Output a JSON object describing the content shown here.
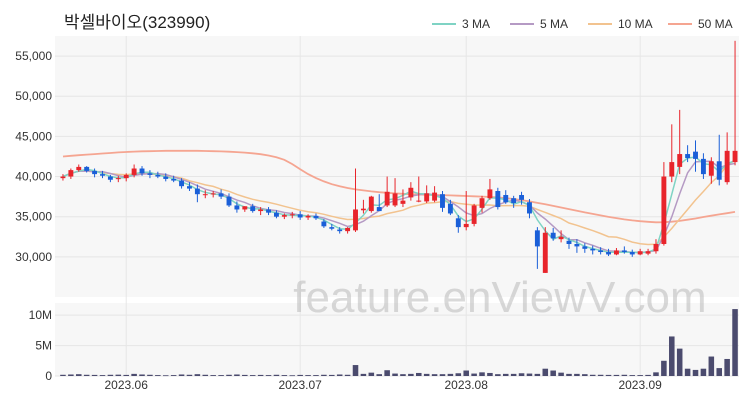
{
  "title": "박셀바이오(323990)",
  "watermark": "feature.enViewV.com",
  "colors": {
    "up": "#e8242b",
    "down": "#1a5fd8",
    "ma3": "#7fd3c4",
    "ma5": "#b59ac4",
    "ma10": "#f2c38f",
    "ma50": "#f5a591",
    "volume": "#4b4b6e",
    "grid": "#e6e6e6",
    "panel": "#f7f7f7"
  },
  "legend": [
    {
      "label": "3 MA",
      "key": "ma3"
    },
    {
      "label": "5 MA",
      "key": "ma5"
    },
    {
      "label": "10 MA",
      "key": "ma10"
    },
    {
      "label": "50 MA",
      "key": "ma50"
    }
  ],
  "chart_data": {
    "type": "candlestick",
    "price_ylim": [
      25000,
      57500
    ],
    "price_ticks": [
      30000,
      35000,
      40000,
      45000,
      50000,
      55000
    ],
    "price_tick_labels": [
      "30,000",
      "35,000",
      "40,000",
      "45,000",
      "50,000",
      "55,000"
    ],
    "volume_ylim": [
      0,
      12000000
    ],
    "volume_ticks": [
      0,
      5000000,
      10000000
    ],
    "volume_tick_labels": [
      "0",
      "5M",
      "10M"
    ],
    "x_tick_labels": [
      {
        "label": "2023.06",
        "index": 8
      },
      {
        "label": "2023.07",
        "index": 30
      },
      {
        "label": "2023.08",
        "index": 51
      },
      {
        "label": "2023.09",
        "index": 73
      }
    ],
    "candles": [
      [
        39800,
        40300,
        39500,
        40000
      ],
      [
        40000,
        41000,
        39700,
        40800
      ],
      [
        40800,
        41500,
        40600,
        41200
      ],
      [
        41200,
        41300,
        40500,
        40700
      ],
      [
        40700,
        41000,
        39900,
        40300
      ],
      [
        40300,
        40700,
        39800,
        40100
      ],
      [
        40000,
        40200,
        39300,
        39600
      ],
      [
        39700,
        40100,
        39300,
        39800
      ],
      [
        39800,
        40400,
        39400,
        40200
      ],
      [
        40200,
        41500,
        39900,
        41000
      ],
      [
        41000,
        41300,
        40100,
        40400
      ],
      [
        40400,
        40800,
        39800,
        40200
      ],
      [
        40200,
        40600,
        39800,
        40000
      ],
      [
        40000,
        40400,
        39400,
        39700
      ],
      [
        39700,
        40100,
        39300,
        39500
      ],
      [
        39500,
        39800,
        38500,
        38800
      ],
      [
        38800,
        39300,
        38200,
        38500
      ],
      [
        38500,
        39000,
        36800,
        37800
      ],
      [
        37800,
        38300,
        37300,
        37800
      ],
      [
        37800,
        38200,
        37400,
        37900
      ],
      [
        37900,
        38400,
        37200,
        37500
      ],
      [
        37500,
        37900,
        36200,
        36400
      ],
      [
        36400,
        36900,
        35500,
        35900
      ],
      [
        35900,
        36300,
        35600,
        36300
      ],
      [
        36300,
        36600,
        35500,
        35700
      ],
      [
        35700,
        36200,
        35200,
        35900
      ],
      [
        35900,
        36200,
        35200,
        35500
      ],
      [
        35500,
        35800,
        34800,
        35000
      ],
      [
        35000,
        35400,
        34700,
        35200
      ],
      [
        35200,
        35600,
        34800,
        35300
      ],
      [
        35300,
        35700,
        34600,
        34900
      ],
      [
        34900,
        35300,
        34600,
        35100
      ],
      [
        35100,
        35400,
        34600,
        34800
      ],
      [
        34400,
        34700,
        33600,
        33800
      ],
      [
        33700,
        34100,
        33300,
        33500
      ],
      [
        33400,
        33700,
        32900,
        33200
      ],
      [
        33200,
        33700,
        32900,
        33600
      ],
      [
        33300,
        41000,
        33100,
        35900
      ],
      [
        35800,
        37100,
        35400,
        36000
      ],
      [
        35700,
        37600,
        35500,
        37500
      ],
      [
        36200,
        37800,
        35700,
        35700
      ],
      [
        36400,
        40000,
        36200,
        38100
      ],
      [
        36400,
        39800,
        36200,
        37900
      ],
      [
        36600,
        38400,
        36200,
        37000
      ],
      [
        37400,
        39300,
        37000,
        38600
      ],
      [
        37000,
        40000,
        36800,
        37000
      ],
      [
        36900,
        38900,
        36700,
        37900
      ],
      [
        37000,
        38800,
        36800,
        38000
      ],
      [
        37800,
        38200,
        35600,
        36100
      ],
      [
        36600,
        37100,
        35200,
        35400
      ],
      [
        34800,
        35200,
        33000,
        33700
      ],
      [
        33700,
        38200,
        33300,
        34100
      ],
      [
        34100,
        36600,
        33800,
        36400
      ],
      [
        36100,
        37600,
        35500,
        37300
      ],
      [
        37300,
        39700,
        37100,
        38400
      ],
      [
        38200,
        38600,
        35900,
        36200
      ],
      [
        37700,
        38300,
        36600,
        36800
      ],
      [
        37300,
        37600,
        36100,
        36700
      ],
      [
        37700,
        38100,
        36500,
        37100
      ],
      [
        36800,
        37200,
        34800,
        35400
      ],
      [
        33300,
        33700,
        28500,
        31300
      ],
      [
        28000,
        33700,
        28000,
        33000
      ],
      [
        33000,
        33600,
        32000,
        32300
      ],
      [
        32200,
        33300,
        31800,
        32500
      ],
      [
        32000,
        32400,
        31000,
        31600
      ],
      [
        31600,
        32200,
        30500,
        31300
      ],
      [
        31300,
        31700,
        30500,
        31000
      ],
      [
        31000,
        31400,
        30300,
        30800
      ],
      [
        30800,
        31200,
        30300,
        30600
      ],
      [
        30600,
        31000,
        30100,
        30300
      ],
      [
        30300,
        31100,
        30200,
        30800
      ],
      [
        30800,
        31300,
        30400,
        30600
      ],
      [
        30600,
        30900,
        30000,
        30300
      ],
      [
        30300,
        31000,
        30200,
        30700
      ],
      [
        30400,
        31000,
        30200,
        30700
      ],
      [
        30700,
        32200,
        30400,
        31600
      ],
      [
        31600,
        41800,
        31400,
        40000
      ],
      [
        40000,
        46500,
        39300,
        41800
      ],
      [
        41200,
        48300,
        40300,
        42800
      ],
      [
        42800,
        43900,
        41800,
        42300
      ],
      [
        43100,
        44500,
        40600,
        42200
      ],
      [
        42200,
        42900,
        39700,
        40300
      ],
      [
        40100,
        42400,
        39100,
        41900
      ],
      [
        41900,
        45200,
        38900,
        39600
      ],
      [
        39300,
        45500,
        39000,
        43200
      ],
      [
        41800,
        56900,
        41400,
        43200
      ]
    ],
    "volume_millions": [
      0.2,
      0.25,
      0.3,
      0.2,
      0.18,
      0.15,
      0.2,
      0.22,
      0.18,
      0.35,
      0.25,
      0.2,
      0.15,
      0.12,
      0.15,
      0.25,
      0.2,
      0.3,
      0.2,
      0.15,
      0.15,
      0.2,
      0.25,
      0.18,
      0.15,
      0.18,
      0.15,
      0.2,
      0.15,
      0.12,
      0.18,
      0.15,
      0.15,
      0.2,
      0.18,
      0.25,
      0.2,
      1.8,
      0.35,
      0.55,
      0.3,
      0.95,
      0.4,
      0.3,
      0.35,
      0.5,
      0.35,
      0.3,
      0.3,
      0.35,
      0.45,
      0.9,
      0.4,
      0.6,
      0.5,
      0.3,
      0.35,
      0.35,
      0.45,
      0.4,
      0.35,
      1.2,
      0.9,
      0.55,
      0.35,
      0.35,
      0.3,
      0.2,
      0.2,
      0.18,
      0.18,
      0.2,
      0.15,
      0.15,
      0.18,
      0.6,
      2.5,
      6.5,
      4.5,
      1.2,
      1.0,
      1.2,
      3.2,
      1.3,
      2.8,
      11.0
    ],
    "ma3": [
      40000,
      40400,
      40670,
      40900,
      40730,
      40370,
      40000,
      39830,
      39870,
      40330,
      40530,
      40530,
      40200,
      39970,
      39730,
      39330,
      38930,
      38370,
      38030,
      37830,
      37730,
      37270,
      36600,
      36200,
      35970,
      35970,
      35700,
      35470,
      35230,
      35170,
      35130,
      35100,
      34930,
      34570,
      34030,
      33500,
      33430,
      34230,
      35170,
      36470,
      36400,
      37100,
      37230,
      37670,
      38170,
      37870,
      37830,
      37630,
      37330,
      36500,
      35070,
      34400,
      34730,
      35930,
      37370,
      37300,
      37130,
      36570,
      36870,
      36400,
      34600,
      33230,
      32200,
      32600,
      32130,
      31800,
      31300,
      31030,
      30800,
      30570,
      30570,
      30570,
      30570,
      30530,
      30570,
      31000,
      34100,
      37800,
      41530,
      42300,
      42430,
      41600,
      41470,
      40600,
      41570,
      42000
    ],
    "ma5": [
      40000,
      40400,
      40670,
      40680,
      40600,
      40620,
      40380,
      40100,
      39920,
      40140,
      40300,
      40340,
      40360,
      40260,
      39960,
      39640,
      39300,
      38860,
      38420,
      38160,
      37900,
      37480,
      37060,
      36780,
      36360,
      36040,
      35860,
      35760,
      35520,
      35380,
      35180,
      35100,
      35060,
      34820,
      34500,
      34180,
      33780,
      34000,
      34440,
      35120,
      35740,
      36640,
      37040,
      37240,
      37560,
      37720,
      37880,
      37700,
      37520,
      36880,
      36220,
      35460,
      35140,
      35380,
      36020,
      36480,
      36820,
      37080,
      36840,
      36440,
      35460,
      34700,
      33820,
      32900,
      32140,
      32140,
      31750,
      31440,
      31060,
      30740,
      30700,
      30660,
      30560,
      30540,
      30620,
      30780,
      32640,
      35000,
      37860,
      40460,
      41820,
      41880,
      41900,
      41100,
      41440,
      41640
    ],
    "ma10": [
      40000,
      40400,
      40670,
      40680,
      40600,
      40520,
      40370,
      40270,
      40230,
      40330,
      40390,
      40330,
      40230,
      40100,
      39990,
      39800,
      39470,
      39230,
      38960,
      38770,
      38420,
      38160,
      37780,
      37450,
      37170,
      36960,
      36780,
      36560,
      36300,
      36040,
      35800,
      35620,
      35500,
      35300,
      35050,
      34830,
      34650,
      34680,
      34770,
      34960,
      35070,
      35380,
      35580,
      35810,
      36220,
      36430,
      36690,
      36760,
      36860,
      36890,
      36650,
      36560,
      36460,
      36440,
      36460,
      36370,
      36380,
      36380,
      36380,
      36310,
      35900,
      35530,
      35150,
      34760,
      34210,
      33930,
      33590,
      33270,
      32910,
      32510,
      32460,
      32190,
      31830,
      31640,
      31540,
      31580,
      32470,
      33540,
      34730,
      35890,
      37080,
      38140,
      39250,
      40130,
      41410,
      42020
    ],
    "ma50": [
      42500,
      42580,
      42660,
      42730,
      42800,
      42870,
      42930,
      43000,
      43060,
      43100,
      43140,
      43160,
      43180,
      43200,
      43200,
      43200,
      43200,
      43200,
      43180,
      43160,
      43130,
      43090,
      43040,
      42980,
      42890,
      42780,
      42620,
      42400,
      42080,
      41550,
      40900,
      40300,
      39800,
      39400,
      39050,
      38780,
      38570,
      38400,
      38270,
      38150,
      38050,
      37970,
      37900,
      37850,
      37800,
      37760,
      37730,
      37700,
      37680,
      37650,
      37620,
      37580,
      37540,
      37500,
      37460,
      37400,
      37320,
      37200,
      37060,
      36900,
      36720,
      36540,
      36340,
      36140,
      35940,
      35740,
      35540,
      35350,
      35160,
      34980,
      34820,
      34660,
      34540,
      34440,
      34360,
      34300,
      34320,
      34380,
      34480,
      34620,
      34780,
      34960,
      35120,
      35290,
      35440,
      35600
    ]
  }
}
